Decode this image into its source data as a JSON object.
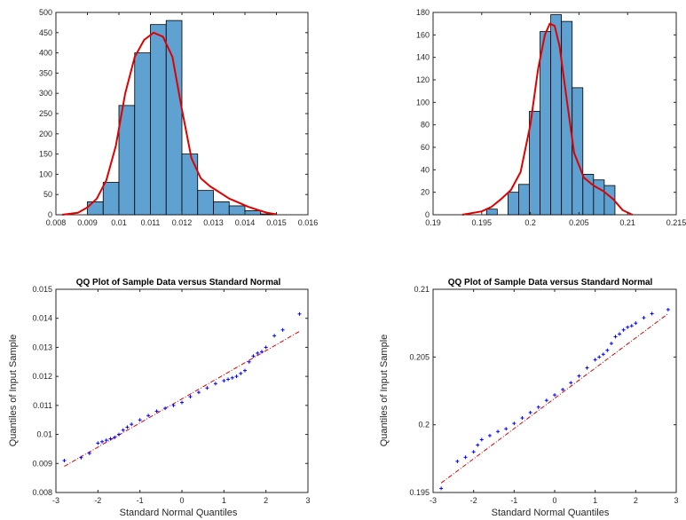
{
  "chart_data": [
    {
      "type": "bar",
      "subtype": "histogram",
      "title": "",
      "xlim": [
        0.008,
        0.016
      ],
      "ylim": [
        0,
        500
      ],
      "xticks": [
        "0.008",
        "0.009",
        "0.01",
        "0.011",
        "0.012",
        "0.013",
        "0.014",
        "0.015",
        "0.016"
      ],
      "yticks": [
        "0",
        "50",
        "100",
        "150",
        "200",
        "250",
        "300",
        "350",
        "400",
        "450",
        "500"
      ],
      "bin_edges": [
        0.009,
        0.0095,
        0.01,
        0.0105,
        0.011,
        0.0115,
        0.012,
        0.0125,
        0.013,
        0.0135,
        0.014,
        0.0145,
        0.015
      ],
      "counts": [
        32,
        80,
        270,
        400,
        470,
        480,
        150,
        60,
        32,
        22,
        10,
        2
      ],
      "bar_color": "#5fa2d2",
      "curve_color": "#e00000",
      "density_curve": {
        "x": [
          0.0082,
          0.0087,
          0.009,
          0.0093,
          0.0096,
          0.0099,
          0.0102,
          0.0105,
          0.0108,
          0.0111,
          0.0114,
          0.0117,
          0.012,
          0.0123,
          0.0126,
          0.0129,
          0.0132,
          0.0135,
          0.0138,
          0.0141,
          0.0144,
          0.0147,
          0.015
        ],
        "y": [
          0,
          5,
          18,
          40,
          85,
          170,
          300,
          390,
          432,
          450,
          440,
          390,
          260,
          140,
          90,
          70,
          55,
          40,
          30,
          20,
          12,
          5,
          1
        ]
      }
    },
    {
      "type": "bar",
      "subtype": "histogram",
      "title": "",
      "xlim": [
        0.19,
        0.215
      ],
      "ylim": [
        0,
        180
      ],
      "xticks": [
        "0.19",
        "0.195",
        "0.2",
        "0.205",
        "0.21",
        "0.215"
      ],
      "yticks": [
        "0",
        "20",
        "40",
        "60",
        "80",
        "100",
        "120",
        "140",
        "160",
        "180"
      ],
      "bin_edges": [
        0.1955,
        0.1966,
        0.1977,
        0.1988,
        0.1999,
        0.201,
        0.2021,
        0.2032,
        0.2043,
        0.2054,
        0.2065,
        0.2076,
        0.2087
      ],
      "counts": [
        5,
        0,
        20,
        27,
        92,
        163,
        178,
        172,
        113,
        36,
        31,
        26
      ],
      "bar_color": "#5fa2d2",
      "curve_color": "#e00000",
      "density_curve": {
        "x": [
          0.193,
          0.195,
          0.196,
          0.197,
          0.198,
          0.199,
          0.2,
          0.2008,
          0.2015,
          0.202,
          0.2025,
          0.203,
          0.2037,
          0.2045,
          0.2055,
          0.2065,
          0.2075,
          0.2085,
          0.2095,
          0.2105
        ],
        "y": [
          0,
          3,
          7,
          14,
          22,
          38,
          80,
          130,
          160,
          170,
          168,
          150,
          105,
          55,
          33,
          26,
          21,
          14,
          4,
          0
        ]
      }
    },
    {
      "type": "scatter",
      "subtype": "qqplot",
      "title": "QQ Plot of Sample Data versus Standard Normal",
      "xlabel": "Standard Normal Quantiles",
      "ylabel": "Quantiles of Input Sample",
      "xlim": [
        -3,
        3
      ],
      "ylim": [
        0.008,
        0.015
      ],
      "xticks": [
        "-3",
        "-2",
        "-1",
        "0",
        "1",
        "2",
        "3"
      ],
      "yticks": [
        "0.008",
        "0.009",
        "0.01",
        "0.011",
        "0.012",
        "0.013",
        "0.014",
        "0.015"
      ],
      "marker_color": "#0000ff",
      "line_color": "#e00000",
      "reference_line": {
        "x": [
          -2.8,
          2.8
        ],
        "y": [
          0.0089,
          0.01355
        ]
      },
      "points": {
        "x": [
          -2.8,
          -2.4,
          -2.2,
          -2.0,
          -1.9,
          -1.8,
          -1.7,
          -1.6,
          -1.5,
          -1.4,
          -1.3,
          -1.2,
          -1.0,
          -0.8,
          -0.6,
          -0.4,
          -0.2,
          0.0,
          0.2,
          0.4,
          0.6,
          0.8,
          1.0,
          1.1,
          1.2,
          1.3,
          1.4,
          1.5,
          1.6,
          1.7,
          1.8,
          1.9,
          2.0,
          2.2,
          2.4,
          2.8
        ],
        "y": [
          0.0091,
          0.0092,
          0.00935,
          0.0097,
          0.00975,
          0.0098,
          0.00985,
          0.0099,
          0.01,
          0.01015,
          0.01025,
          0.01035,
          0.0105,
          0.01065,
          0.0108,
          0.0109,
          0.011,
          0.0111,
          0.0113,
          0.01145,
          0.0116,
          0.01175,
          0.01185,
          0.0119,
          0.01195,
          0.012,
          0.0121,
          0.0122,
          0.0125,
          0.0127,
          0.0128,
          0.01285,
          0.013,
          0.0134,
          0.0136,
          0.01415
        ]
      }
    },
    {
      "type": "scatter",
      "subtype": "qqplot",
      "title": "QQ Plot of Sample Data versus Standard Normal",
      "xlabel": "Standard Normal Quantiles",
      "ylabel": "Quantiles of Input Sample",
      "xlim": [
        -3,
        3
      ],
      "ylim": [
        0.195,
        0.21
      ],
      "xticks": [
        "-3",
        "-2",
        "-1",
        "0",
        "1",
        "2",
        "3"
      ],
      "yticks": [
        "0.195",
        "0.2",
        "0.205",
        "0.21"
      ],
      "marker_color": "#0000ff",
      "line_color": "#e00000",
      "reference_line": {
        "x": [
          -2.8,
          2.8
        ],
        "y": [
          0.1957,
          0.2082
        ]
      },
      "points": {
        "x": [
          -2.8,
          -2.4,
          -2.2,
          -2.0,
          -1.9,
          -1.8,
          -1.6,
          -1.4,
          -1.2,
          -1.0,
          -0.8,
          -0.6,
          -0.4,
          -0.2,
          0.0,
          0.2,
          0.4,
          0.6,
          0.8,
          1.0,
          1.1,
          1.2,
          1.3,
          1.4,
          1.5,
          1.6,
          1.7,
          1.8,
          1.9,
          2.0,
          2.2,
          2.4,
          2.8
        ],
        "y": [
          0.1953,
          0.1973,
          0.1976,
          0.198,
          0.1985,
          0.1989,
          0.1992,
          0.1995,
          0.1997,
          0.2001,
          0.2005,
          0.2009,
          0.2013,
          0.2018,
          0.2022,
          0.2026,
          0.2031,
          0.2036,
          0.2042,
          0.2048,
          0.205,
          0.2052,
          0.2055,
          0.206,
          0.2065,
          0.2067,
          0.207,
          0.2072,
          0.2073,
          0.2075,
          0.2079,
          0.2082,
          0.2085
        ]
      }
    }
  ]
}
